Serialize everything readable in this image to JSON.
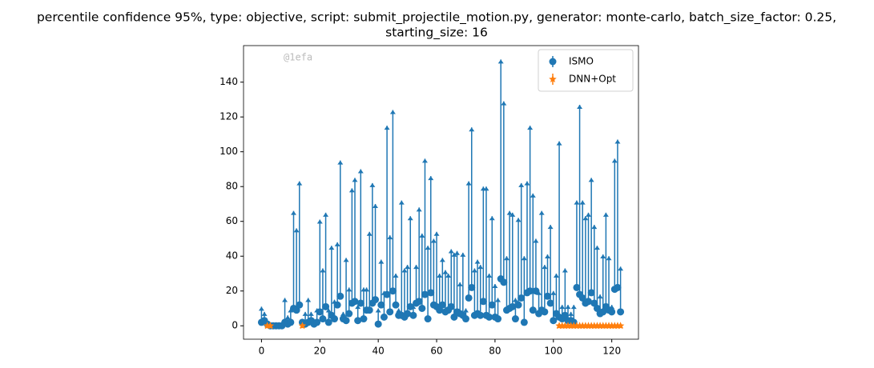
{
  "chart_data": {
    "type": "errorbar",
    "title": "percentile confidence 95%, type: objective, script: submit_projectile_motion.py, generator: monte-carlo, batch_size_factor: 0.25,",
    "subtitle": "starting_size: 16",
    "watermark": "@1efa",
    "xlim": [
      -6.15,
      129.15
    ],
    "ylim": [
      -7.7,
      161
    ],
    "xticks": [
      0,
      20,
      40,
      60,
      80,
      100,
      120
    ],
    "yticks": [
      0,
      20,
      40,
      60,
      80,
      100,
      120,
      140
    ],
    "grid": false,
    "legend": "upper right",
    "series": [
      {
        "name": "ISMO",
        "color": "#1f77b4",
        "marker": "circle",
        "x": [
          0,
          1,
          2,
          3,
          4,
          5,
          6,
          7,
          8,
          9,
          10,
          11,
          12,
          13,
          14,
          15,
          16,
          17,
          18,
          19,
          20,
          21,
          22,
          23,
          24,
          25,
          26,
          27,
          28,
          29,
          30,
          31,
          32,
          33,
          34,
          35,
          36,
          37,
          38,
          39,
          40,
          41,
          42,
          43,
          44,
          45,
          46,
          47,
          48,
          49,
          50,
          51,
          52,
          53,
          54,
          55,
          56,
          57,
          58,
          59,
          60,
          61,
          62,
          63,
          64,
          65,
          66,
          67,
          68,
          69,
          70,
          71,
          72,
          73,
          74,
          75,
          76,
          77,
          78,
          79,
          80,
          81,
          82,
          83,
          84,
          85,
          86,
          87,
          88,
          89,
          90,
          91,
          92,
          93,
          94,
          95,
          96,
          97,
          98,
          99,
          100,
          101,
          102,
          103,
          104,
          105,
          106,
          107,
          108,
          109,
          110,
          111,
          112,
          113,
          114,
          115,
          116,
          117,
          118,
          119,
          120,
          121,
          122,
          123
        ],
        "values": [
          2,
          3,
          1,
          0,
          0,
          0,
          0,
          0,
          2,
          1,
          2,
          10,
          9,
          12,
          2,
          1,
          2,
          3,
          1,
          2,
          8,
          4,
          11,
          2,
          6,
          4,
          12,
          17,
          4,
          3,
          7,
          13,
          14,
          3,
          13,
          4,
          9,
          9,
          13,
          15,
          1,
          12,
          5,
          18,
          8,
          20,
          12,
          6,
          6,
          5,
          7,
          11,
          6,
          13,
          14,
          10,
          18,
          4,
          19,
          12,
          11,
          9,
          12,
          8,
          9,
          11,
          5,
          8,
          7,
          6,
          4,
          16,
          22,
          6,
          7,
          6,
          14,
          6,
          5,
          12,
          5,
          4,
          27,
          25,
          9,
          10,
          11,
          4,
          12,
          16,
          2,
          19,
          20,
          9,
          20,
          7,
          9,
          8,
          17,
          13,
          3,
          7,
          5,
          4,
          6,
          3,
          3,
          2,
          22,
          18,
          16,
          13,
          14,
          19,
          13,
          10,
          7,
          8,
          11,
          9,
          8,
          21,
          22,
          8
        ],
        "errors": [
          9,
          5,
          2,
          1,
          1,
          1,
          1,
          1,
          14,
          5,
          8,
          56,
          47,
          71,
          1,
          7,
          14,
          5,
          3,
          8,
          53,
          29,
          54,
          8,
          40,
          11,
          36,
          78,
          4,
          36,
          15,
          66,
          71,
          9,
          77,
          18,
          13,
          45,
          69,
          55,
          9,
          26,
          15,
          97,
          44,
          104,
          18,
          4,
          66,
          28,
          28,
          52,
          6,
          22,
          54,
          43,
          78,
          42,
          67,
          38,
          43,
          21,
          27,
          24,
          21,
          33,
          37,
          35,
          18,
          36,
          6,
          67,
          92,
          27,
          31,
          29,
          66,
          74,
          25,
          51,
          19,
          12,
          126,
          104,
          31,
          56,
          54,
          12,
          50,
          66,
          38,
          64,
          95,
          67,
          30,
          13,
          57,
          27,
          24,
          45,
          17,
          23,
          101,
          8,
          27,
          9,
          5,
          10,
          50,
          109,
          56,
          50,
          51,
          66,
          45,
          36,
          11,
          33,
          54,
          31,
          4,
          75,
          85,
          26
        ]
      },
      {
        "name": "DNN+Opt",
        "color": "#ff7f0e",
        "marker": "star",
        "x": [
          2,
          3,
          14,
          102,
          103,
          104,
          105,
          106,
          107,
          108,
          109,
          110,
          111,
          112,
          113,
          114,
          115,
          116,
          117,
          118,
          119,
          120,
          121,
          122,
          123
        ],
        "values": [
          0,
          0,
          0,
          0,
          0,
          0,
          0,
          0,
          0,
          0,
          0,
          0,
          0,
          0,
          0,
          0,
          0,
          0,
          0,
          0,
          0,
          0,
          0,
          0,
          0
        ],
        "errors": [
          1,
          1,
          1,
          1,
          1,
          1,
          1,
          1,
          1,
          1,
          1,
          1,
          1,
          1,
          1,
          1,
          1,
          1,
          1,
          1,
          1,
          1,
          1,
          1,
          1
        ]
      }
    ]
  }
}
